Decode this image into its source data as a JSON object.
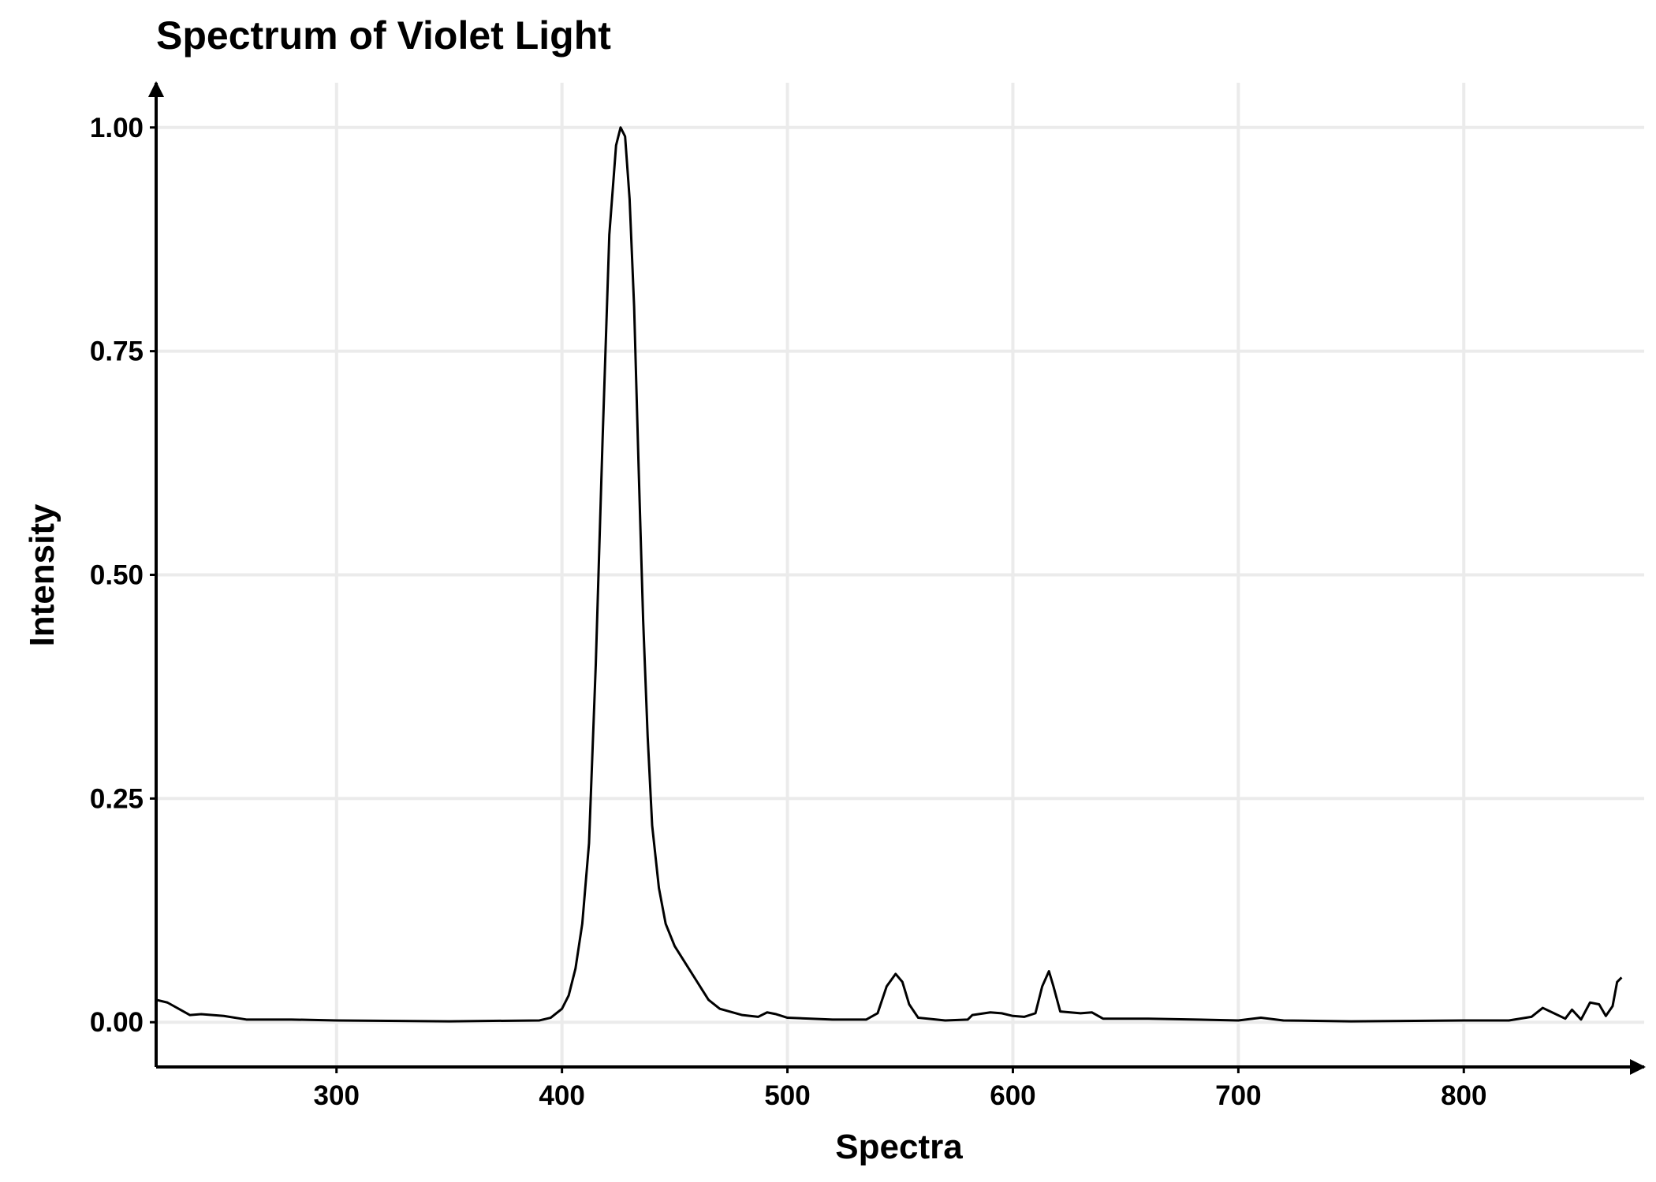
{
  "chart_data": {
    "type": "line",
    "title": "Spectrum of Violet Light",
    "x_label": "Spectra",
    "y_label": "Intensity",
    "x": [
      220,
      225,
      230,
      235,
      240,
      250,
      260,
      280,
      300,
      350,
      390,
      395,
      400,
      403,
      406,
      409,
      412,
      415,
      418,
      421,
      424,
      426,
      428,
      430,
      432,
      434,
      436,
      438,
      440,
      443,
      446,
      450,
      455,
      460,
      465,
      470,
      480,
      487,
      491,
      495,
      500,
      520,
      535,
      540,
      544,
      548,
      551,
      554,
      558,
      570,
      580,
      582,
      590,
      595,
      600,
      605,
      610,
      613,
      616,
      618,
      621,
      630,
      635,
      640,
      660,
      700,
      710,
      720,
      750,
      800,
      820,
      830,
      835,
      840,
      845,
      848,
      852,
      856,
      860,
      863,
      866,
      868,
      870
    ],
    "values": [
      0.025,
      0.022,
      0.015,
      0.008,
      0.009,
      0.007,
      0.003,
      0.003,
      0.002,
      0.001,
      0.002,
      0.005,
      0.015,
      0.03,
      0.06,
      0.11,
      0.2,
      0.4,
      0.65,
      0.88,
      0.98,
      1.0,
      0.99,
      0.92,
      0.8,
      0.62,
      0.45,
      0.32,
      0.22,
      0.15,
      0.11,
      0.085,
      0.065,
      0.045,
      0.025,
      0.015,
      0.008,
      0.006,
      0.011,
      0.009,
      0.005,
      0.003,
      0.003,
      0.01,
      0.04,
      0.054,
      0.045,
      0.02,
      0.005,
      0.002,
      0.003,
      0.008,
      0.011,
      0.01,
      0.007,
      0.006,
      0.01,
      0.04,
      0.057,
      0.04,
      0.012,
      0.01,
      0.011,
      0.004,
      0.004,
      0.002,
      0.005,
      0.002,
      0.001,
      0.002,
      0.002,
      0.006,
      0.016,
      0.01,
      0.004,
      0.014,
      0.003,
      0.022,
      0.02,
      0.007,
      0.018,
      0.045,
      0.05
    ],
    "color": "#000000",
    "xlim": [
      220,
      880
    ],
    "xticks": [
      300,
      400,
      500,
      600,
      700,
      800
    ],
    "ylim": [
      -0.05,
      1.05
    ],
    "yticks": [
      {
        "value": 0,
        "label": "0.00"
      },
      {
        "value": 0.25,
        "label": "0.25"
      },
      {
        "value": 0.5,
        "label": "0.50"
      },
      {
        "value": 0.75,
        "label": "0.75"
      },
      {
        "value": 1,
        "label": "1.00"
      }
    ],
    "grid": true
  }
}
